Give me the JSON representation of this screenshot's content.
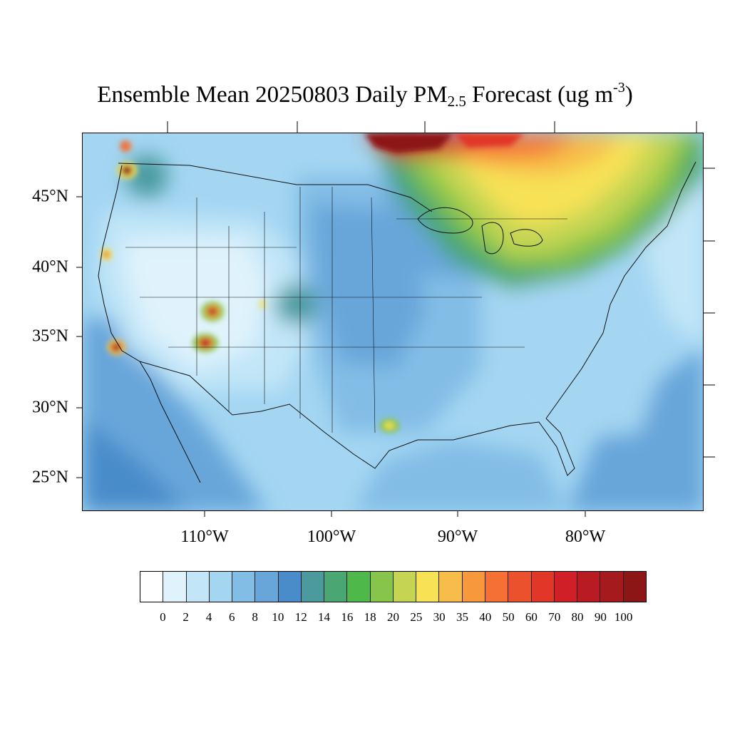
{
  "title": {
    "prefix": "Ensemble Mean 20250803 Daily PM",
    "subscript": "2.5",
    "suffix": " Forecast (ug m",
    "superscript": "-3",
    "close": ")"
  },
  "map": {
    "lat_labels": [
      "45°N",
      "40°N",
      "35°N",
      "30°N",
      "25°N"
    ],
    "lon_labels": [
      "110°W",
      "100°W",
      "90°W",
      "80°W"
    ],
    "hotspots": [
      {
        "name": "northwest-washington-fire",
        "level": 100
      },
      {
        "name": "northern-california-fire",
        "level": 60
      },
      {
        "name": "utah-fire",
        "level": 90
      },
      {
        "name": "arizona-fire",
        "level": 90
      },
      {
        "name": "southern-california-fire",
        "level": 90
      },
      {
        "name": "east-texas-hotspot",
        "level": 30
      },
      {
        "name": "canada-smoke-plume",
        "level": 100
      }
    ]
  },
  "colorbar": {
    "labels": [
      "0",
      "2",
      "4",
      "6",
      "8",
      "10",
      "12",
      "14",
      "16",
      "18",
      "20",
      "25",
      "30",
      "35",
      "40",
      "50",
      "60",
      "70",
      "80",
      "90",
      "100"
    ],
    "colors": [
      "#ffffff",
      "#e0f3fc",
      "#c2e6f8",
      "#a4d6f2",
      "#82bde6",
      "#68a6da",
      "#4a8cca",
      "#4a9a9e",
      "#4aa673",
      "#4fb84a",
      "#86c44c",
      "#c5d553",
      "#f7e256",
      "#f8bc4a",
      "#f7983d",
      "#f47034",
      "#ec512d",
      "#e23628",
      "#d11f27",
      "#b81b22",
      "#a41a1d",
      "#8c1515"
    ]
  }
}
